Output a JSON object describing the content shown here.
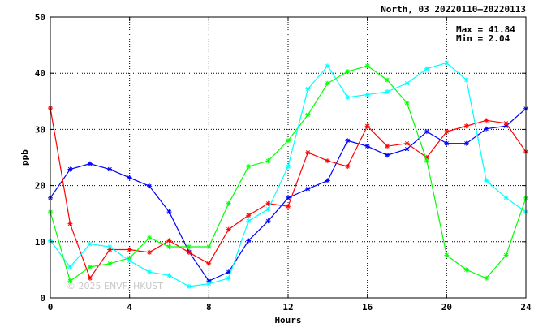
{
  "chart_data": {
    "type": "line",
    "title": "North, 03 20220110–20220113",
    "xlabel": "Hours",
    "ylabel": "ppb",
    "xlim": [
      0,
      24
    ],
    "ylim": [
      0,
      50
    ],
    "x_ticks": [
      0,
      4,
      8,
      12,
      16,
      20,
      24
    ],
    "y_ticks": [
      0,
      10,
      20,
      30,
      40,
      50
    ],
    "grid": true,
    "stats": {
      "max_text": "Max = 41.84",
      "min_text": "Min =  2.04"
    },
    "watermark": "© 2025  ENVF, HKUST",
    "x": [
      0,
      1,
      2,
      3,
      4,
      5,
      6,
      7,
      8,
      9,
      10,
      11,
      12,
      13,
      14,
      15,
      16,
      17,
      18,
      19,
      20,
      21,
      22,
      23,
      24
    ],
    "series": [
      {
        "color": "#0000ff",
        "values": [
          17.8,
          22.9,
          23.9,
          22.9,
          21.4,
          19.9,
          15.3,
          8.2,
          3.0,
          4.6,
          10.2,
          13.7,
          17.8,
          19.4,
          20.9,
          28.0,
          27.0,
          25.4,
          26.5,
          29.6,
          27.5,
          27.5,
          30.1,
          30.6,
          33.7
        ]
      },
      {
        "color": "#ff0000",
        "values": [
          33.8,
          13.2,
          3.5,
          8.6,
          8.6,
          8.1,
          10.2,
          8.1,
          6.1,
          12.2,
          14.7,
          16.8,
          16.3,
          25.9,
          24.4,
          23.4,
          30.6,
          27.0,
          27.5,
          25.0,
          29.6,
          30.6,
          31.6,
          31.1,
          26.0
        ]
      },
      {
        "color": "#00ff00",
        "values": [
          15.3,
          3.0,
          5.5,
          6.1,
          7.1,
          10.7,
          9.1,
          9.1,
          9.1,
          16.8,
          23.4,
          24.4,
          28.0,
          32.6,
          38.2,
          40.3,
          41.3,
          38.8,
          34.7,
          24.4,
          7.6,
          5.0,
          3.5,
          7.6,
          17.8
        ]
      },
      {
        "color": "#00ffff",
        "values": [
          10.2,
          5.5,
          9.6,
          9.1,
          6.6,
          4.6,
          4.0,
          2.04,
          2.5,
          3.5,
          13.7,
          15.8,
          23.4,
          37.2,
          41.3,
          35.7,
          36.2,
          36.7,
          38.2,
          40.8,
          41.84,
          38.8,
          20.9,
          17.8,
          15.3
        ]
      }
    ]
  }
}
